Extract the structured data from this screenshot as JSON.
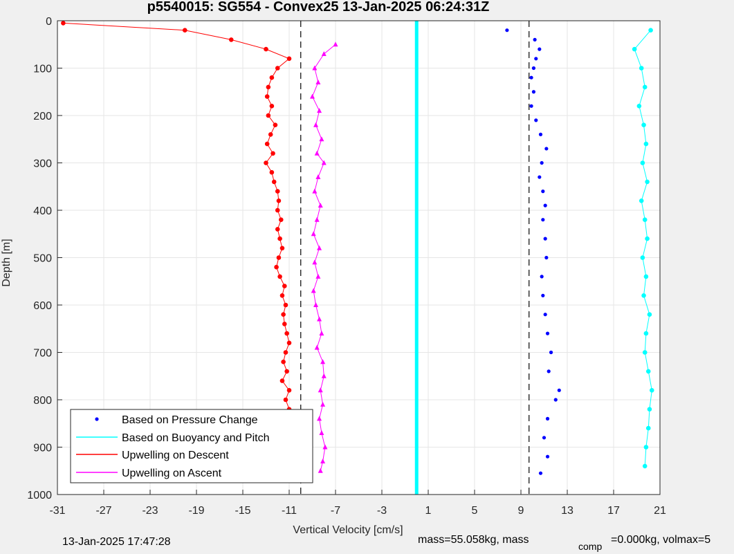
{
  "chart_data": {
    "type": "scatter",
    "title": "p5540015: SG554 - Convex25 13-Jan-2025 06:24:31Z",
    "xlabel": "Vertical Velocity [cm/s]",
    "ylabel": "Depth [m]",
    "xlim": [
      -31,
      21
    ],
    "ylim": [
      0,
      1000
    ],
    "y_reversed": true,
    "grid": true,
    "x_ticks": [
      "-31",
      "-27",
      "-23",
      "-19",
      "-15",
      "-11",
      "-7",
      "-3",
      "1",
      "5",
      "9",
      "13",
      "17",
      "21"
    ],
    "y_ticks": [
      "0",
      "100",
      "200",
      "300",
      "400",
      "500",
      "600",
      "700",
      "800",
      "900",
      "1000"
    ],
    "legend_position": "bottom-left",
    "legend": [
      "Based on Pressure Change",
      "Based on Buoyancy and Pitch",
      "Upwelling on Descent",
      "Upwelling on Ascent"
    ],
    "series": [
      {
        "name": "Based on Pressure Change",
        "color": "#0000ff",
        "marker": "dot",
        "points": [
          [
            7.8,
            20
          ],
          [
            10.2,
            40
          ],
          [
            10.6,
            60
          ],
          [
            10.3,
            80
          ],
          [
            10.1,
            100
          ],
          [
            9.9,
            120
          ],
          [
            10.1,
            150
          ],
          [
            9.9,
            180
          ],
          [
            10.3,
            210
          ],
          [
            10.7,
            240
          ],
          [
            11.2,
            270
          ],
          [
            10.8,
            300
          ],
          [
            10.6,
            330
          ],
          [
            10.9,
            360
          ],
          [
            11.1,
            390
          ],
          [
            10.9,
            420
          ],
          [
            11.1,
            460
          ],
          [
            11.2,
            500
          ],
          [
            10.8,
            540
          ],
          [
            10.9,
            580
          ],
          [
            11.1,
            620
          ],
          [
            11.3,
            660
          ],
          [
            11.6,
            700
          ],
          [
            11.4,
            740
          ],
          [
            12.3,
            780
          ],
          [
            12.0,
            800
          ],
          [
            11.3,
            840
          ],
          [
            11.0,
            880
          ],
          [
            11.3,
            920
          ],
          [
            10.7,
            955
          ]
        ]
      },
      {
        "name": "Based on Buoyancy and Pitch",
        "color": "#00ffff",
        "marker": "circle",
        "points": [
          [
            20.2,
            20
          ],
          [
            18.8,
            60
          ],
          [
            19.4,
            100
          ],
          [
            19.7,
            140
          ],
          [
            19.2,
            180
          ],
          [
            19.6,
            220
          ],
          [
            19.8,
            260
          ],
          [
            19.5,
            300
          ],
          [
            19.9,
            340
          ],
          [
            19.4,
            380
          ],
          [
            19.7,
            420
          ],
          [
            19.9,
            460
          ],
          [
            19.5,
            500
          ],
          [
            19.8,
            540
          ],
          [
            19.6,
            580
          ],
          [
            20.1,
            620
          ],
          [
            19.8,
            660
          ],
          [
            19.7,
            700
          ],
          [
            20.0,
            740
          ],
          [
            20.3,
            780
          ],
          [
            20.1,
            820
          ],
          [
            20.0,
            860
          ],
          [
            19.8,
            900
          ],
          [
            19.7,
            940
          ]
        ]
      },
      {
        "name": "Upwelling on Descent",
        "color": "#ff0000",
        "marker": "circle",
        "points": [
          [
            -30.5,
            5
          ],
          [
            -20.0,
            20
          ],
          [
            -16.0,
            40
          ],
          [
            -13.0,
            60
          ],
          [
            -11.0,
            80
          ],
          [
            -12.0,
            100
          ],
          [
            -12.5,
            120
          ],
          [
            -12.8,
            140
          ],
          [
            -12.9,
            160
          ],
          [
            -12.5,
            180
          ],
          [
            -12.8,
            200
          ],
          [
            -12.2,
            220
          ],
          [
            -12.6,
            240
          ],
          [
            -12.9,
            260
          ],
          [
            -12.4,
            280
          ],
          [
            -13.0,
            300
          ],
          [
            -12.5,
            320
          ],
          [
            -12.3,
            340
          ],
          [
            -12.0,
            360
          ],
          [
            -11.9,
            380
          ],
          [
            -12.0,
            400
          ],
          [
            -11.7,
            420
          ],
          [
            -12.0,
            440
          ],
          [
            -11.8,
            460
          ],
          [
            -11.6,
            480
          ],
          [
            -11.9,
            500
          ],
          [
            -12.1,
            520
          ],
          [
            -11.8,
            540
          ],
          [
            -11.4,
            560
          ],
          [
            -11.6,
            580
          ],
          [
            -11.3,
            600
          ],
          [
            -11.5,
            620
          ],
          [
            -11.4,
            640
          ],
          [
            -11.2,
            660
          ],
          [
            -11.0,
            680
          ],
          [
            -11.3,
            700
          ],
          [
            -11.5,
            720
          ],
          [
            -11.2,
            740
          ],
          [
            -11.6,
            760
          ],
          [
            -11.0,
            780
          ],
          [
            -11.3,
            800
          ],
          [
            -11.0,
            820
          ],
          [
            -10.8,
            840
          ],
          [
            -10.6,
            860
          ],
          [
            -10.5,
            880
          ],
          [
            -10.3,
            900
          ],
          [
            -10.5,
            920
          ],
          [
            -10.8,
            940
          ],
          [
            -10.4,
            960
          ]
        ]
      },
      {
        "name": "Upwelling on Ascent",
        "color": "#ff00ff",
        "marker": "triangle",
        "points": [
          [
            -7.0,
            50
          ],
          [
            -8.0,
            70
          ],
          [
            -8.8,
            100
          ],
          [
            -8.5,
            130
          ],
          [
            -9.0,
            160
          ],
          [
            -8.4,
            190
          ],
          [
            -8.7,
            220
          ],
          [
            -8.2,
            250
          ],
          [
            -8.6,
            280
          ],
          [
            -8.0,
            300
          ],
          [
            -8.5,
            330
          ],
          [
            -8.8,
            360
          ],
          [
            -8.3,
            390
          ],
          [
            -8.6,
            420
          ],
          [
            -8.9,
            450
          ],
          [
            -8.4,
            480
          ],
          [
            -8.8,
            510
          ],
          [
            -8.5,
            540
          ],
          [
            -8.9,
            570
          ],
          [
            -8.7,
            600
          ],
          [
            -8.4,
            630
          ],
          [
            -8.2,
            660
          ],
          [
            -8.6,
            690
          ],
          [
            -8.1,
            720
          ],
          [
            -8.0,
            750
          ],
          [
            -8.3,
            780
          ],
          [
            -8.1,
            810
          ],
          [
            -8.4,
            840
          ],
          [
            -8.2,
            870
          ],
          [
            -7.9,
            900
          ],
          [
            -8.1,
            930
          ],
          [
            -8.3,
            950
          ]
        ]
      }
    ],
    "reference_lines": [
      {
        "type": "vertical",
        "x": 0,
        "color": "#00ffff",
        "style": "solid-thick"
      },
      {
        "type": "vertical",
        "x": -10,
        "color": "#000000",
        "style": "dashed"
      },
      {
        "type": "vertical",
        "x": 9.7,
        "color": "#000000",
        "style": "dashed"
      }
    ]
  },
  "footer": {
    "timestamp": "13-Jan-2025 17:47:28",
    "mass_text": "mass=55.058kg, mass",
    "comp_subscript": "comp",
    "comp_text": "=0.000kg, volmax=5"
  }
}
